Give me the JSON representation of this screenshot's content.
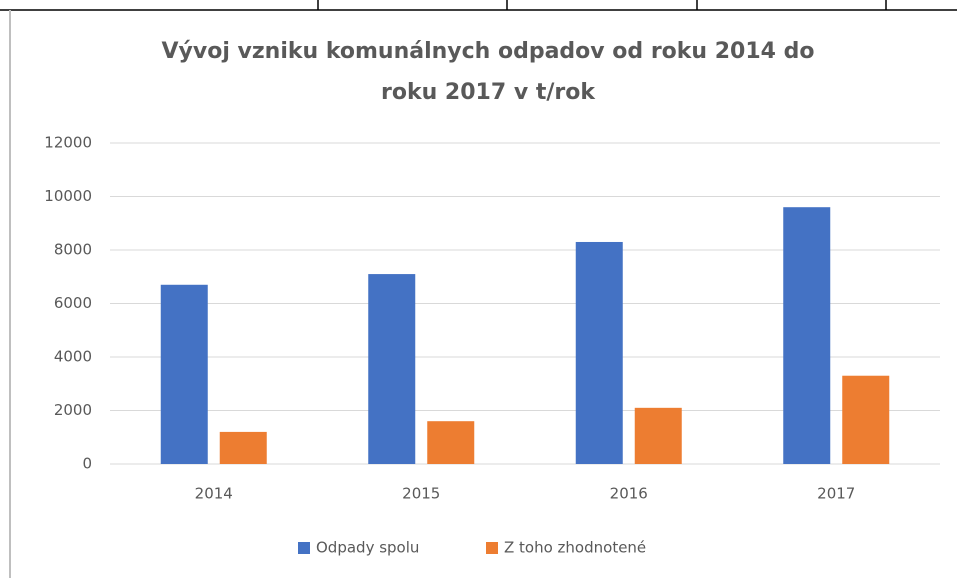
{
  "chart_data": {
    "type": "bar",
    "title": [
      "Vývoj vzniku komunálnych odpadov  od roku 2014 do",
      "roku 2017 v t/rok"
    ],
    "categories": [
      "2014",
      "2015",
      "2016",
      "2017"
    ],
    "series": [
      {
        "name": "Odpady spolu",
        "color": "#4472c4",
        "values": [
          6700,
          7100,
          8300,
          9600
        ]
      },
      {
        "name": "Z toho zhodnotené",
        "color": "#ed7d31",
        "values": [
          1200,
          1600,
          2100,
          3300
        ]
      }
    ],
    "ylim": [
      0,
      12000
    ],
    "yticks": [
      0,
      2000,
      4000,
      6000,
      8000,
      10000,
      12000
    ],
    "grid": true,
    "legend": "bottom"
  }
}
